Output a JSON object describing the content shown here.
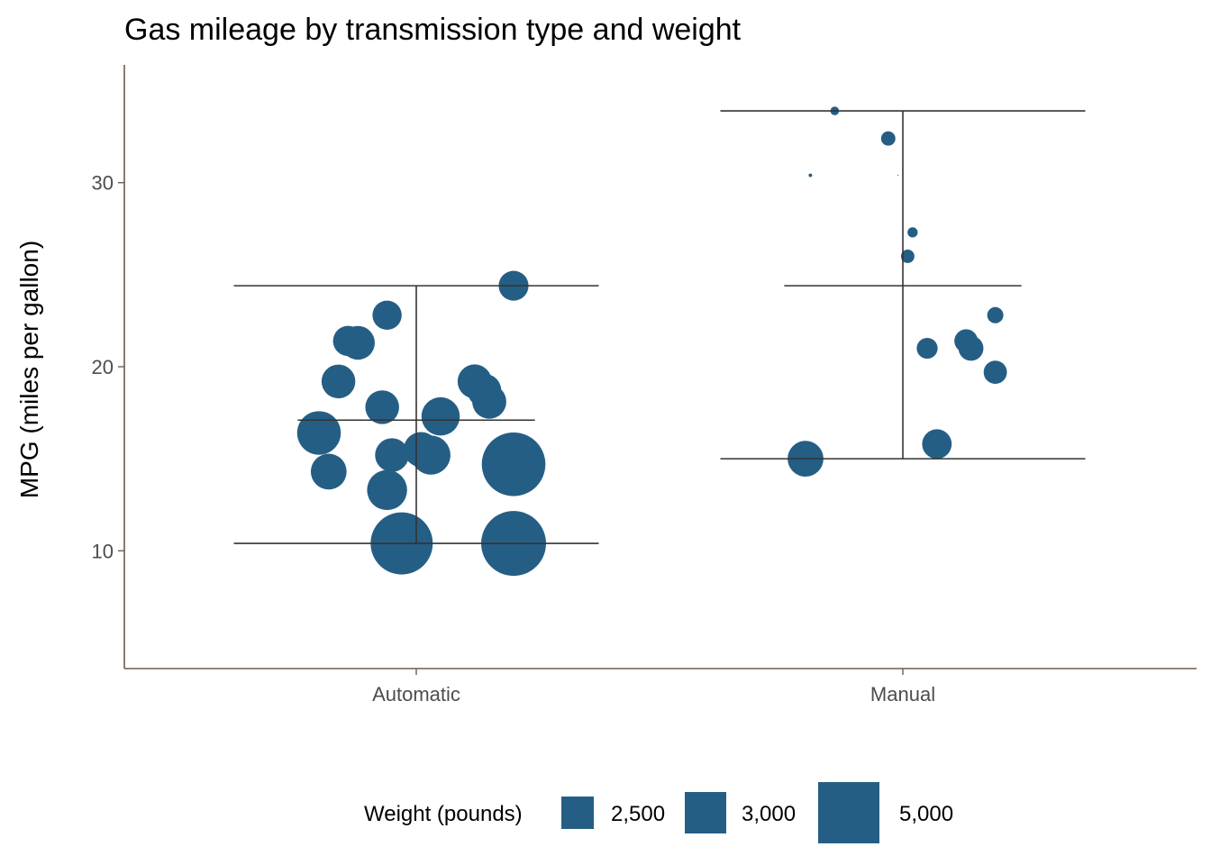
{
  "chart_data": {
    "type": "scatter",
    "title": "Gas mileage by transmission type and weight",
    "xlabel": "",
    "ylabel": "MPG (miles per gallon)",
    "categories": [
      "Automatic",
      "Manual"
    ],
    "ylim": [
      3.6,
      36.4
    ],
    "yticks": [
      10,
      20,
      30
    ],
    "point_color": "#255e85",
    "line_color": "#333333",
    "axis_color": "#6b5e4a",
    "size_legend": {
      "title": "Weight (pounds)",
      "entries": [
        {
          "label": "2,500",
          "weight": 2500
        },
        {
          "label": "3,000",
          "weight": 3000
        },
        {
          "label": "5,000",
          "weight": 5000
        }
      ]
    },
    "summary": [
      {
        "category": "Automatic",
        "min": 10.4,
        "mean": 17.1,
        "max": 24.4
      },
      {
        "category": "Manual",
        "min": 15.0,
        "mean": 24.4,
        "max": 33.9
      }
    ],
    "series": [
      {
        "category": "Automatic",
        "points": [
          {
            "jitter": 0.2,
            "mpg": 24.4,
            "weight": 3190
          },
          {
            "jitter": -0.06,
            "mpg": 22.8,
            "weight": 3150
          },
          {
            "jitter": -0.14,
            "mpg": 21.4,
            "weight": 3215
          },
          {
            "jitter": -0.12,
            "mpg": 21.3,
            "weight": 3440
          },
          {
            "jitter": -0.16,
            "mpg": 19.2,
            "weight": 3440
          },
          {
            "jitter": 0.12,
            "mpg": 19.2,
            "weight": 3460
          },
          {
            "jitter": 0.14,
            "mpg": 18.7,
            "weight": 3440
          },
          {
            "jitter": -0.07,
            "mpg": 17.8,
            "weight": 3440
          },
          {
            "jitter": 0.15,
            "mpg": 18.1,
            "weight": 3460
          },
          {
            "jitter": 0.05,
            "mpg": 17.3,
            "weight": 3730
          },
          {
            "jitter": -0.2,
            "mpg": 16.4,
            "weight": 4070
          },
          {
            "jitter": -0.05,
            "mpg": 15.2,
            "weight": 3435
          },
          {
            "jitter": 0.01,
            "mpg": 15.5,
            "weight": 3520
          },
          {
            "jitter": 0.03,
            "mpg": 15.2,
            "weight": 3780
          },
          {
            "jitter": -0.18,
            "mpg": 14.3,
            "weight": 3570
          },
          {
            "jitter": 0.2,
            "mpg": 14.7,
            "weight": 5345
          },
          {
            "jitter": -0.06,
            "mpg": 13.3,
            "weight": 3840
          },
          {
            "jitter": -0.03,
            "mpg": 10.4,
            "weight": 5250
          },
          {
            "jitter": 0.2,
            "mpg": 10.4,
            "weight": 5424
          }
        ]
      },
      {
        "category": "Manual",
        "points": [
          {
            "jitter": -0.14,
            "mpg": 33.9,
            "weight": 1835
          },
          {
            "jitter": -0.03,
            "mpg": 32.4,
            "weight": 2200
          },
          {
            "jitter": -0.19,
            "mpg": 30.4,
            "weight": 1513
          },
          {
            "jitter": -0.01,
            "mpg": 30.4,
            "weight": 200
          },
          {
            "jitter": 0.02,
            "mpg": 27.3,
            "weight": 1935
          },
          {
            "jitter": 0.01,
            "mpg": 26.0,
            "weight": 2140
          },
          {
            "jitter": 0.19,
            "mpg": 22.8,
            "weight": 2320
          },
          {
            "jitter": 0.05,
            "mpg": 21.0,
            "weight": 2620
          },
          {
            "jitter": 0.13,
            "mpg": 21.4,
            "weight": 2780
          },
          {
            "jitter": 0.14,
            "mpg": 21.0,
            "weight": 2875
          },
          {
            "jitter": 0.19,
            "mpg": 19.7,
            "weight": 2770
          },
          {
            "jitter": 0.07,
            "mpg": 15.8,
            "weight": 3170
          },
          {
            "jitter": -0.2,
            "mpg": 15.0,
            "weight": 3570
          }
        ]
      }
    ]
  }
}
